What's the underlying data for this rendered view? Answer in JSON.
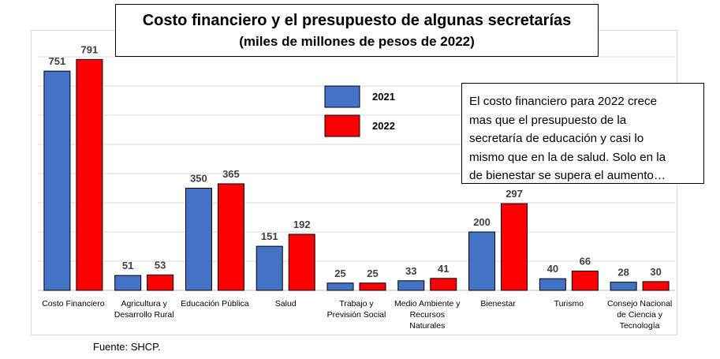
{
  "chart_data": {
    "type": "bar",
    "title": "Costo financiero y el presupuesto de algunas secretarías",
    "subtitle": "(miles de millones de pesos de 2022)",
    "categories": [
      "Costo Financiero",
      "Agricultura y Desarrollo Rural",
      "Educación Pública",
      "Salud",
      "Trabajo y Previsión Social",
      "Medio Ambiente y Recursos Naturales",
      "Bienestar",
      "Turismo",
      "Consejo Nacional de Ciencia y Tecnología"
    ],
    "category_lines": [
      [
        "Costo Financiero"
      ],
      [
        "Agricultura y",
        "Desarrollo Rural"
      ],
      [
        "Educación Pública"
      ],
      [
        "Salud"
      ],
      [
        "Trabajo y",
        "Previsión Social"
      ],
      [
        "Medio Ambiente y",
        "Recursos",
        "Naturales"
      ],
      [
        "Bienestar"
      ],
      [
        "Turismo"
      ],
      [
        "Consejo Nacional",
        "de Ciencia y",
        "Tecnología"
      ]
    ],
    "series": [
      {
        "name": "2021",
        "color": "#4472C4",
        "values": [
          751,
          51,
          350,
          151,
          25,
          33,
          200,
          40,
          28
        ]
      },
      {
        "name": "2022",
        "color": "#FF0000",
        "values": [
          791,
          53,
          365,
          192,
          25,
          41,
          297,
          66,
          30
        ]
      }
    ],
    "ylim": [
      0,
      800
    ],
    "grid": true,
    "legend_position": "top-center"
  },
  "annotation": "El costo financiero para 2022 crece mas que el presupuesto de la secretaría de educación y casi lo mismo que en la de salud. Solo en la de bienestar se supera el aumento…",
  "annotation_lines": [
    "El costo financiero para 2022 crece",
    "mas que el presupuesto de la",
    "secretaría de educación y casi lo",
    "mismo que en la de salud. Solo en la",
    "de bienestar se supera el aumento…"
  ],
  "source": "Fuente: SHCP."
}
